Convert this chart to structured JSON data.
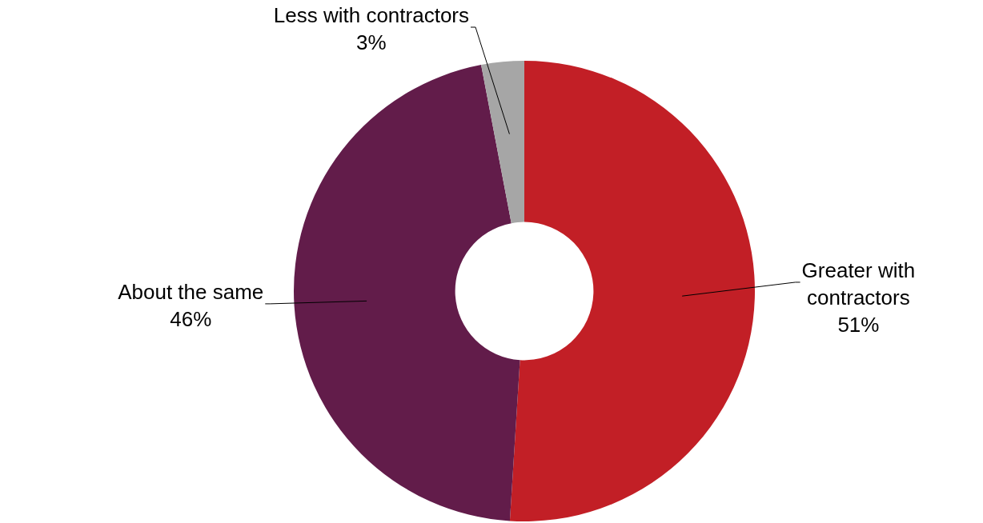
{
  "chart_data": {
    "type": "donut",
    "categories": [
      "Greater with contractors",
      "About the same",
      "Less with contractors"
    ],
    "values": [
      51,
      46,
      3
    ],
    "colors": [
      "#c21f26",
      "#621c4a",
      "#a6a6a6"
    ],
    "value_labels": [
      "51%",
      "46%",
      "3%"
    ],
    "legend": false
  }
}
